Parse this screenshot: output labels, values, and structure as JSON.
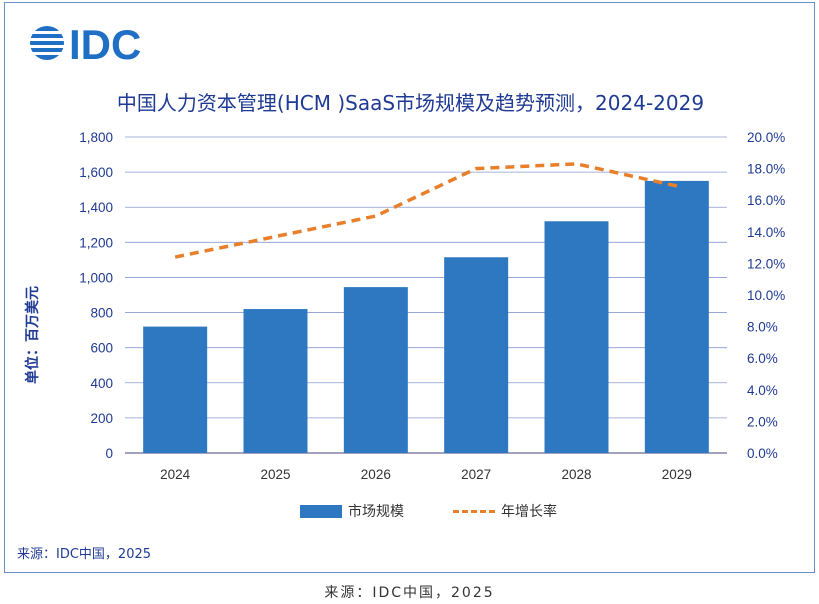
{
  "logo": {
    "text": "IDC",
    "color": "#1f6fc5"
  },
  "title": "中国人力资本管理(HCM )SaaS市场规模及趋势预测，2024-2029",
  "y_axis_label": "单位：百万美元",
  "legend": {
    "bar": "市场规模",
    "line": "年增长率"
  },
  "source": "来源：IDC中国，2025",
  "caption": "来源：IDC中国，2025",
  "colors": {
    "bar": "#2e78c2",
    "line": "#e87f2b",
    "axis_text": "#1f3a93",
    "grid": "#8a9bd0"
  },
  "chart_data": {
    "type": "bar",
    "categories": [
      "2024",
      "2025",
      "2026",
      "2027",
      "2028",
      "2029"
    ],
    "series": [
      {
        "name": "市场规模",
        "type": "bar",
        "axis": "left",
        "values": [
          720,
          820,
          945,
          1115,
          1320,
          1550
        ]
      },
      {
        "name": "年增长率",
        "type": "line",
        "style": "dashed",
        "axis": "right",
        "values": [
          12.4,
          13.7,
          15.0,
          18.0,
          18.3,
          16.9
        ]
      }
    ],
    "y_left": {
      "ylim": [
        0,
        1800
      ],
      "ticks": [
        "0",
        "200",
        "400",
        "600",
        "800",
        "1,000",
        "1,200",
        "1,400",
        "1,600",
        "1,800"
      ]
    },
    "y_right": {
      "ylim": [
        0,
        20
      ],
      "ticks": [
        "0.0%",
        "2.0%",
        "4.0%",
        "6.0%",
        "8.0%",
        "10.0%",
        "12.0%",
        "14.0%",
        "16.0%",
        "18.0%",
        "20.0%"
      ]
    },
    "grid": true,
    "legend_position": "bottom-center"
  }
}
